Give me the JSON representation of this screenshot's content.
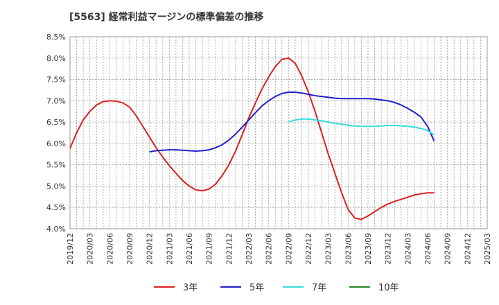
{
  "chart_data": {
    "type": "line",
    "title": "[5563]  経常利益マージンの標準偏差の推移",
    "xlabel": "",
    "ylabel": "",
    "ylim": [
      4.0,
      8.5
    ],
    "y_ticks": [
      "4.0%",
      "4.5%",
      "5.0%",
      "5.5%",
      "6.0%",
      "6.5%",
      "7.0%",
      "7.5%",
      "8.0%",
      "8.5%"
    ],
    "y_tick_values": [
      4.0,
      4.5,
      5.0,
      5.5,
      6.0,
      6.5,
      7.0,
      7.5,
      8.0,
      8.5
    ],
    "x_ticks": [
      "2019/12",
      "2020/03",
      "2020/06",
      "2020/09",
      "2020/12",
      "2021/03",
      "2021/06",
      "2021/09",
      "2021/12",
      "2022/03",
      "2022/06",
      "2022/09",
      "2022/12",
      "2023/03",
      "2023/06",
      "2023/09",
      "2023/12",
      "2024/03",
      "2024/06",
      "2024/09",
      "2024/12",
      "2025/03"
    ],
    "grid": true,
    "legend_position": "bottom",
    "series": [
      {
        "name": "3年",
        "color": "#dd1f1f",
        "points": [
          [
            0,
            5.88
          ],
          [
            1,
            6.25
          ],
          [
            2,
            6.55
          ],
          [
            3,
            6.75
          ],
          [
            4,
            6.9
          ],
          [
            5,
            6.98
          ],
          [
            6,
            7.0
          ],
          [
            7,
            6.99
          ],
          [
            8,
            6.95
          ],
          [
            9,
            6.85
          ],
          [
            10,
            6.65
          ],
          [
            11,
            6.4
          ],
          [
            12,
            6.15
          ],
          [
            13,
            5.9
          ],
          [
            14,
            5.68
          ],
          [
            15,
            5.48
          ],
          [
            16,
            5.3
          ],
          [
            17,
            5.13
          ],
          [
            18,
            5.0
          ],
          [
            19,
            4.91
          ],
          [
            20,
            4.89
          ],
          [
            21,
            4.93
          ],
          [
            22,
            5.05
          ],
          [
            23,
            5.25
          ],
          [
            24,
            5.5
          ],
          [
            25,
            5.82
          ],
          [
            26,
            6.2
          ],
          [
            27,
            6.6
          ],
          [
            28,
            6.95
          ],
          [
            29,
            7.28
          ],
          [
            30,
            7.56
          ],
          [
            31,
            7.8
          ],
          [
            32,
            7.97
          ],
          [
            33,
            8.0
          ],
          [
            34,
            7.88
          ],
          [
            35,
            7.58
          ],
          [
            36,
            7.2
          ],
          [
            37,
            6.75
          ],
          [
            38,
            6.25
          ],
          [
            39,
            5.75
          ],
          [
            40,
            5.3
          ],
          [
            41,
            4.85
          ],
          [
            42,
            4.45
          ],
          [
            43,
            4.25
          ],
          [
            44,
            4.22
          ],
          [
            45,
            4.3
          ],
          [
            46,
            4.4
          ],
          [
            47,
            4.5
          ],
          [
            48,
            4.58
          ],
          [
            49,
            4.64
          ],
          [
            50,
            4.69
          ],
          [
            51,
            4.74
          ],
          [
            52,
            4.79
          ],
          [
            53,
            4.82
          ],
          [
            54,
            4.84
          ],
          [
            55,
            4.84
          ]
        ]
      },
      {
        "name": "5年",
        "color": "#1f1fcc",
        "points": [
          [
            12,
            5.8
          ],
          [
            13,
            5.83
          ],
          [
            14,
            5.84
          ],
          [
            15,
            5.85
          ],
          [
            16,
            5.85
          ],
          [
            17,
            5.84
          ],
          [
            18,
            5.83
          ],
          [
            19,
            5.82
          ],
          [
            20,
            5.83
          ],
          [
            21,
            5.85
          ],
          [
            22,
            5.9
          ],
          [
            23,
            5.97
          ],
          [
            24,
            6.08
          ],
          [
            25,
            6.22
          ],
          [
            26,
            6.38
          ],
          [
            27,
            6.55
          ],
          [
            28,
            6.72
          ],
          [
            29,
            6.88
          ],
          [
            30,
            7.0
          ],
          [
            31,
            7.1
          ],
          [
            32,
            7.17
          ],
          [
            33,
            7.2
          ],
          [
            34,
            7.2
          ],
          [
            35,
            7.18
          ],
          [
            36,
            7.15
          ],
          [
            37,
            7.12
          ],
          [
            38,
            7.1
          ],
          [
            39,
            7.08
          ],
          [
            40,
            7.06
          ],
          [
            41,
            7.05
          ],
          [
            42,
            7.05
          ],
          [
            43,
            7.05
          ],
          [
            44,
            7.05
          ],
          [
            45,
            7.05
          ],
          [
            46,
            7.04
          ],
          [
            47,
            7.02
          ],
          [
            48,
            7.0
          ],
          [
            49,
            6.96
          ],
          [
            50,
            6.9
          ],
          [
            51,
            6.82
          ],
          [
            52,
            6.73
          ],
          [
            53,
            6.62
          ],
          [
            54,
            6.4
          ],
          [
            55,
            6.05
          ]
        ]
      },
      {
        "name": "7年",
        "color": "#33dddd",
        "points": [
          [
            33,
            6.5
          ],
          [
            34,
            6.55
          ],
          [
            35,
            6.57
          ],
          [
            36,
            6.57
          ],
          [
            37,
            6.55
          ],
          [
            38,
            6.53
          ],
          [
            39,
            6.5
          ],
          [
            40,
            6.47
          ],
          [
            41,
            6.45
          ],
          [
            42,
            6.43
          ],
          [
            43,
            6.41
          ],
          [
            44,
            6.4
          ],
          [
            45,
            6.4
          ],
          [
            46,
            6.4
          ],
          [
            47,
            6.41
          ],
          [
            48,
            6.42
          ],
          [
            49,
            6.42
          ],
          [
            50,
            6.41
          ],
          [
            51,
            6.4
          ],
          [
            52,
            6.38
          ],
          [
            53,
            6.35
          ],
          [
            54,
            6.3
          ],
          [
            55,
            6.2
          ]
        ]
      },
      {
        "name": "10年",
        "color": "#228822",
        "points": []
      }
    ]
  }
}
